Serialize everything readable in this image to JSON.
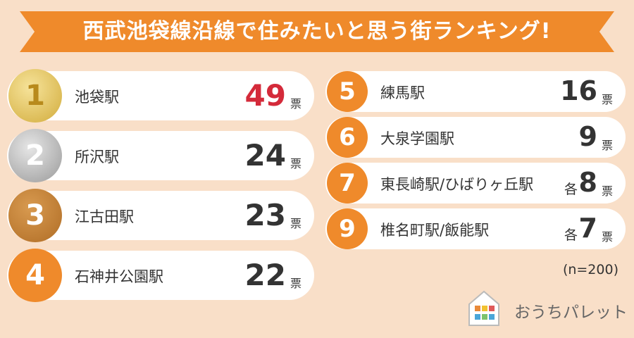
{
  "header": {
    "title": "西武池袋線沿線で住みたいと思う街ランキング!"
  },
  "rankings": [
    {
      "rank": 1,
      "station": "池袋駅",
      "votes": 49,
      "unit": "票"
    },
    {
      "rank": 2,
      "station": "所沢駅",
      "votes": 24,
      "unit": "票"
    },
    {
      "rank": 3,
      "station": "江古田駅",
      "votes": 23,
      "unit": "票"
    },
    {
      "rank": 4,
      "station": "石神井公園駅",
      "votes": 22,
      "unit": "票"
    },
    {
      "rank": 5,
      "station": "練馬駅",
      "votes": 16,
      "unit": "票"
    },
    {
      "rank": 6,
      "station": "大泉学園駅",
      "votes": 9,
      "unit": "票"
    },
    {
      "rank": 7,
      "station": "東長崎駅/ひばりヶ丘駅",
      "prefix": "各",
      "votes": 8,
      "unit": "票"
    },
    {
      "rank": 9,
      "station": "椎名町駅/飯能駅",
      "prefix": "各",
      "votes": 7,
      "unit": "票"
    }
  ],
  "note": "(n=200)",
  "logo": "おうちパレット"
}
